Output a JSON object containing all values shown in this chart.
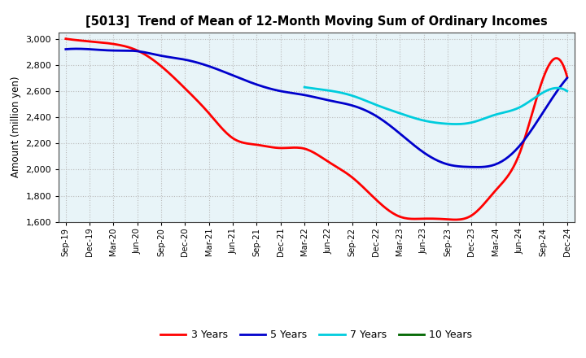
{
  "title": "[5013]  Trend of Mean of 12-Month Moving Sum of Ordinary Incomes",
  "ylabel": "Amount (million yen)",
  "ylim": [
    1600,
    3050
  ],
  "yticks": [
    1600,
    1800,
    2000,
    2200,
    2400,
    2600,
    2800,
    3000
  ],
  "x_labels": [
    "Sep-19",
    "Dec-19",
    "Mar-20",
    "Jun-20",
    "Sep-20",
    "Dec-20",
    "Mar-21",
    "Jun-21",
    "Sep-21",
    "Dec-21",
    "Mar-22",
    "Jun-22",
    "Sep-22",
    "Dec-22",
    "Mar-23",
    "Jun-23",
    "Sep-23",
    "Dec-23",
    "Mar-24",
    "Jun-24",
    "Sep-24",
    "Dec-24"
  ],
  "series": [
    {
      "name": "3 Years",
      "color": "#FF0000",
      "data_x": [
        0,
        1,
        2,
        3,
        4,
        5,
        6,
        7,
        8,
        9,
        10,
        11,
        12,
        13,
        14,
        15,
        16,
        17,
        18,
        19,
        20,
        21
      ],
      "data_y": [
        3000,
        2980,
        2960,
        2910,
        2790,
        2620,
        2430,
        2240,
        2190,
        2165,
        2160,
        2060,
        1940,
        1770,
        1640,
        1625,
        1620,
        1650,
        1840,
        2120,
        2700,
        2710
      ]
    },
    {
      "name": "5 Years",
      "color": "#0000CC",
      "data_x": [
        0,
        1,
        2,
        3,
        4,
        5,
        6,
        7,
        8,
        9,
        10,
        11,
        12,
        13,
        14,
        15,
        16,
        17,
        18,
        19,
        20,
        21
      ],
      "data_y": [
        2920,
        2920,
        2910,
        2905,
        2870,
        2840,
        2790,
        2720,
        2650,
        2600,
        2570,
        2530,
        2490,
        2410,
        2275,
        2130,
        2040,
        2020,
        2040,
        2180,
        2440,
        2700
      ]
    },
    {
      "name": "7 Years",
      "color": "#00CCDD",
      "data_x": [
        10,
        11,
        12,
        13,
        14,
        15,
        16,
        17,
        18,
        19,
        20,
        21
      ],
      "data_y": [
        2630,
        2605,
        2565,
        2495,
        2430,
        2375,
        2350,
        2360,
        2420,
        2475,
        2590,
        2600
      ]
    },
    {
      "name": "10 Years",
      "color": "#006600",
      "data_x": [],
      "data_y": []
    }
  ],
  "legend_labels": [
    "3 Years",
    "5 Years",
    "7 Years",
    "10 Years"
  ],
  "legend_colors": [
    "#FF0000",
    "#0000CC",
    "#00CCDD",
    "#006600"
  ],
  "plot_bg_color": "#E8F4F8",
  "fig_bg_color": "#FFFFFF",
  "grid_color": "#BBBBBB"
}
